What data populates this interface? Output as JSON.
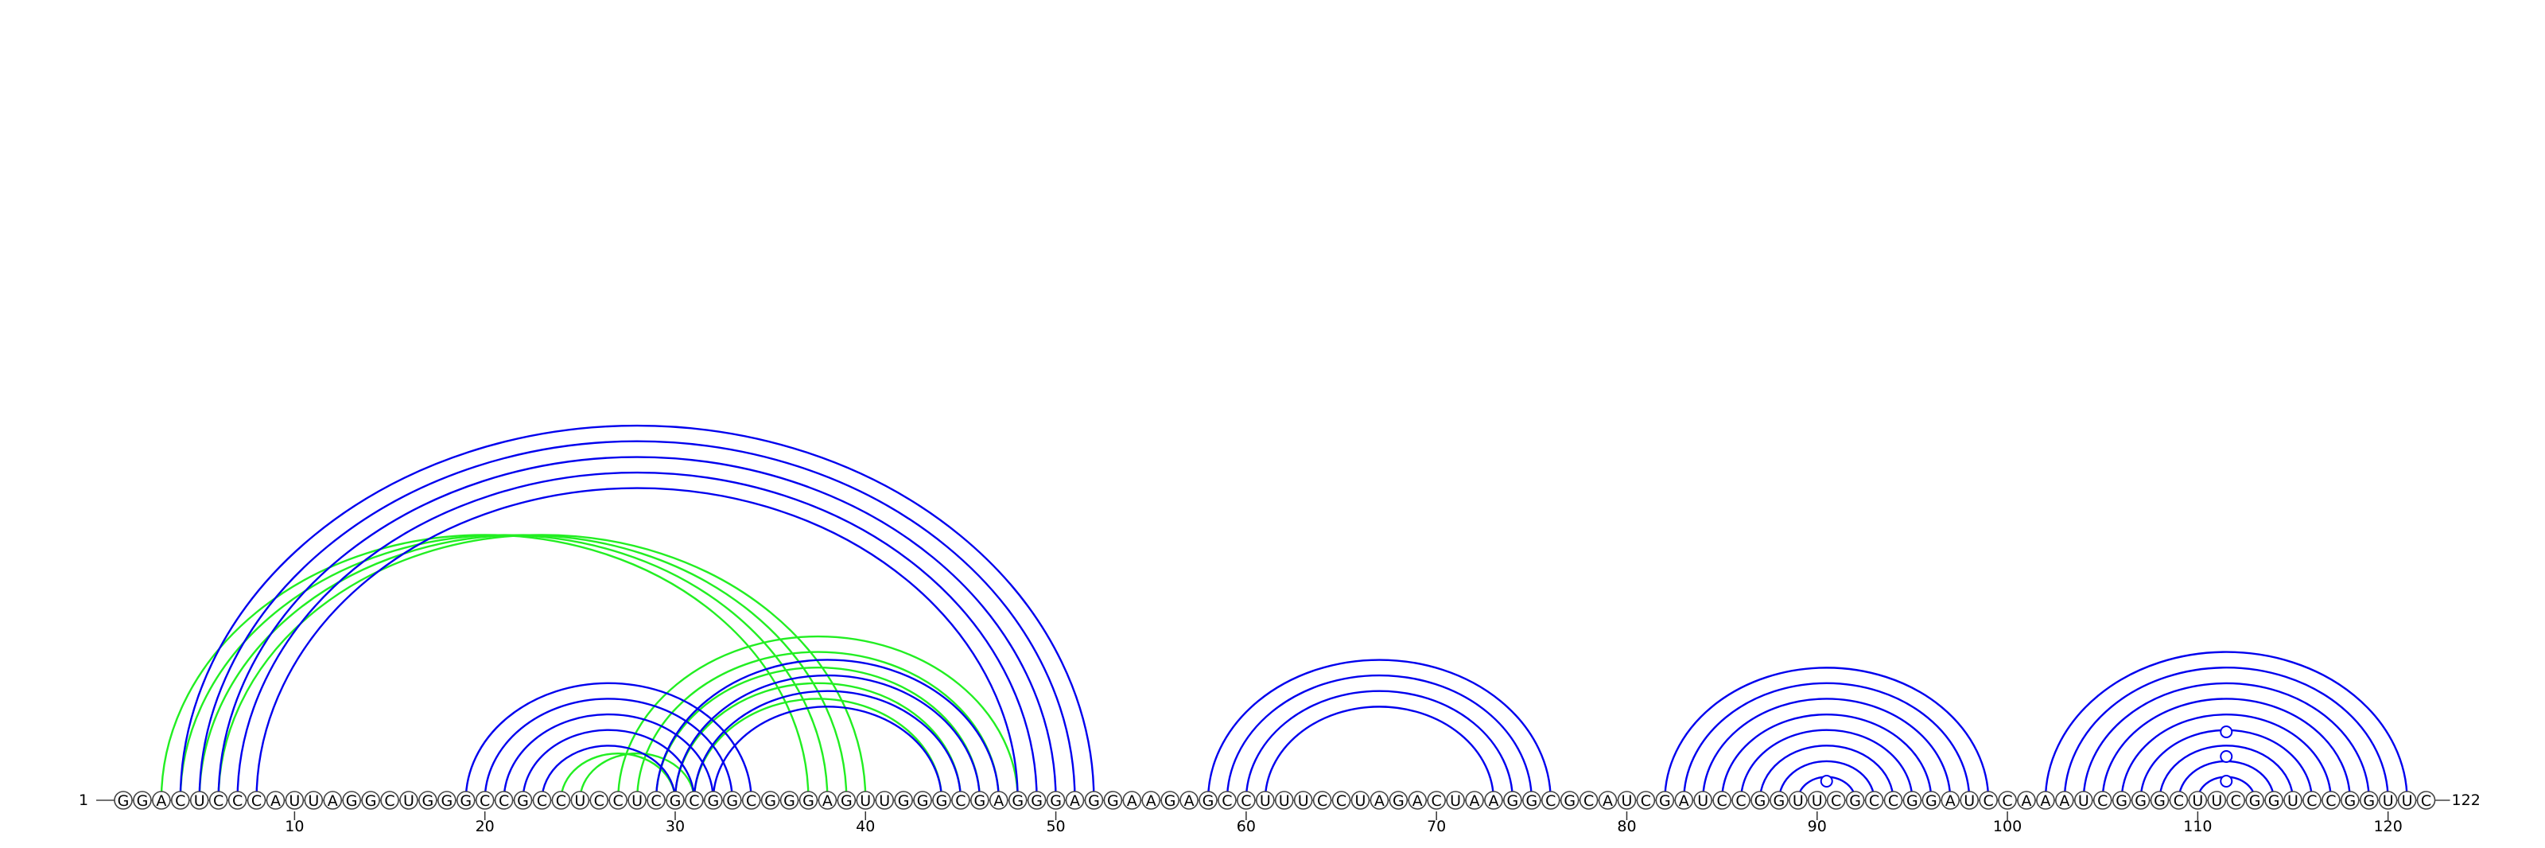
{
  "sequence": "GGACUCCCAUUAGGCUGGGCCGCCUCCUCGCGGCGGGAGUUGGGCGAGGGAGGAAGAGCCUUUCCUAGACUAAGGCGCAUCGAUCCGGUUCGCCGGAUCCAAAUCGGGCUUCGGUCCGGUUC",
  "start_label": "1",
  "end_label": "122",
  "ticks": [
    "10",
    "20",
    "30",
    "40",
    "50",
    "60",
    "70",
    "80",
    "90",
    "100",
    "110",
    "120"
  ],
  "colors": {
    "primary": "#0000ee",
    "alternative": "#22ee22"
  },
  "arcs": {
    "primary": [
      [
        4,
        52
      ],
      [
        5,
        51
      ],
      [
        6,
        50
      ],
      [
        7,
        49
      ],
      [
        8,
        48
      ],
      [
        19,
        34
      ],
      [
        20,
        33
      ],
      [
        21,
        32
      ],
      [
        22,
        31
      ],
      [
        23,
        30
      ],
      [
        29,
        47
      ],
      [
        30,
        46
      ],
      [
        31,
        45
      ],
      [
        32,
        44
      ],
      [
        58,
        76
      ],
      [
        59,
        75
      ],
      [
        60,
        74
      ],
      [
        61,
        73
      ],
      [
        82,
        99
      ],
      [
        83,
        98
      ],
      [
        84,
        97
      ],
      [
        85,
        96
      ],
      [
        86,
        95
      ],
      [
        87,
        94
      ],
      [
        88,
        93
      ],
      [
        89,
        92
      ],
      [
        102,
        121
      ],
      [
        103,
        120
      ],
      [
        104,
        119
      ],
      [
        105,
        118
      ],
      [
        106,
        117
      ],
      [
        107,
        116
      ],
      [
        108,
        115
      ],
      [
        109,
        114
      ],
      [
        110,
        113
      ]
    ],
    "alternative": [
      [
        3,
        37
      ],
      [
        4,
        38
      ],
      [
        5,
        39
      ],
      [
        6,
        40
      ],
      [
        24,
        30
      ],
      [
        25,
        31
      ],
      [
        27,
        48
      ],
      [
        28,
        47
      ],
      [
        29,
        46
      ],
      [
        30,
        45
      ],
      [
        31,
        44
      ]
    ]
  },
  "markers": [
    90.5,
    111.5,
    111.5,
    111.5
  ]
}
